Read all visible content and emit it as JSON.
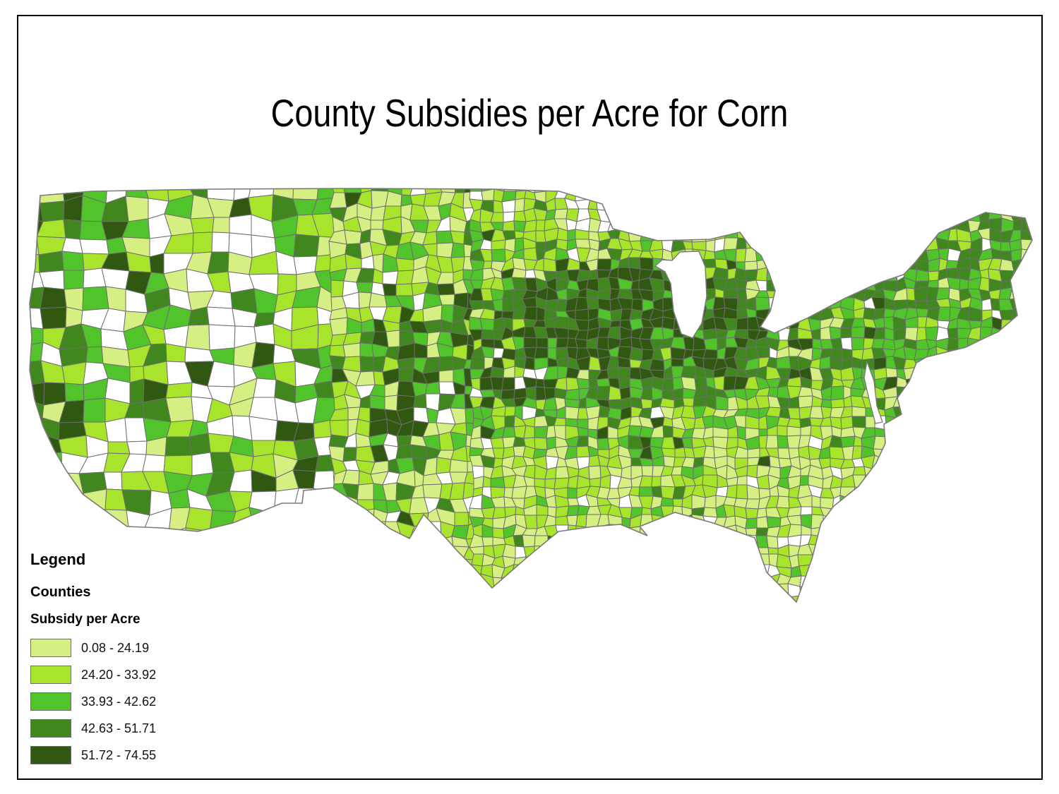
{
  "title": "County Subsidies per Acre for Corn",
  "legend": {
    "heading": "Legend",
    "layer_name": "Counties",
    "field_label": "Subsidy per Acre",
    "classes": [
      {
        "label": "0.08 - 24.19",
        "color": "#D6EF83"
      },
      {
        "label": "24.20 - 33.92",
        "color": "#A8E42B"
      },
      {
        "label": "33.93 - 42.62",
        "color": "#50C42A"
      },
      {
        "label": "42.63 - 51.71",
        "color": "#40881E"
      },
      {
        "label": "51.72 - 74.55",
        "color": "#315810"
      }
    ]
  },
  "map": {
    "county_border_color": "#6E6E6E",
    "coastline_color": "#7A7A7A",
    "no_data_fill": "#FFFFFF",
    "water_fill": "#FFFFFF",
    "background": "#FFFFFF",
    "frame_color": "#000000"
  },
  "chart_data": {
    "type": "choropleth",
    "title": "County Subsidies per Acre for Corn",
    "region": "Contiguous United States, county level",
    "variable": "Subsidy per Acre",
    "classification": [
      {
        "range": "0.08 - 24.19",
        "color": "#D6EF83"
      },
      {
        "range": "24.20 - 33.92",
        "color": "#A8E42B"
      },
      {
        "range": "33.93 - 42.62",
        "color": "#50C42A"
      },
      {
        "range": "42.63 - 51.71",
        "color": "#40881E"
      },
      {
        "range": "51.72 - 74.55",
        "color": "#315810"
      }
    ],
    "no_data": "white (unshaded counties)",
    "legend_position": "bottom-left",
    "min_value": 0.08,
    "max_value": 74.55
  }
}
